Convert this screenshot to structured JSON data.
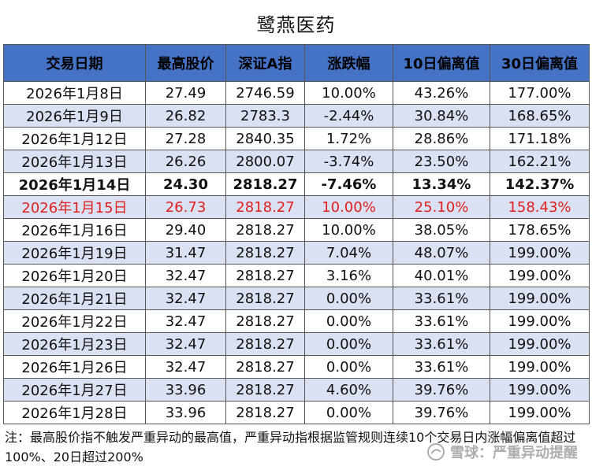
{
  "title": "鹭燕医药",
  "headers": [
    "交易日期",
    "最高股价",
    "深证A指",
    "涨跌幅",
    "10日偏离值",
    "30日偏离值"
  ],
  "rows": [
    {
      "date": "2026年1月8日",
      "high": "27.49",
      "index": "2746.59",
      "change": "10.00%",
      "dev10": "43.26%",
      "dev30": "177.00%"
    },
    {
      "date": "2026年1月9日",
      "high": "26.82",
      "index": "2783.3",
      "change": "-2.44%",
      "dev10": "30.84%",
      "dev30": "168.65%"
    },
    {
      "date": "2026年1月12日",
      "high": "27.28",
      "index": "2840.35",
      "change": "1.72%",
      "dev10": "28.86%",
      "dev30": "171.18%"
    },
    {
      "date": "2026年1月13日",
      "high": "26.26",
      "index": "2800.07",
      "change": "-3.74%",
      "dev10": "23.50%",
      "dev30": "162.21%"
    },
    {
      "date": "2026年1月14日",
      "high": "24.30",
      "index": "2818.27",
      "change": "-7.46%",
      "dev10": "13.34%",
      "dev30": "142.37%"
    },
    {
      "date": "2026年1月15日",
      "high": "26.73",
      "index": "2818.27",
      "change": "10.00%",
      "dev10": "25.10%",
      "dev30": "158.43%"
    },
    {
      "date": "2026年1月16日",
      "high": "29.40",
      "index": "2818.27",
      "change": "10.00%",
      "dev10": "38.05%",
      "dev30": "178.65%"
    },
    {
      "date": "2026年1月19日",
      "high": "31.47",
      "index": "2818.27",
      "change": "7.04%",
      "dev10": "48.07%",
      "dev30": "199.00%"
    },
    {
      "date": "2026年1月20日",
      "high": "32.47",
      "index": "2818.27",
      "change": "3.16%",
      "dev10": "40.01%",
      "dev30": "199.00%"
    },
    {
      "date": "2026年1月21日",
      "high": "32.47",
      "index": "2818.27",
      "change": "0.00%",
      "dev10": "33.61%",
      "dev30": "199.00%"
    },
    {
      "date": "2026年1月22日",
      "high": "32.47",
      "index": "2818.27",
      "change": "0.00%",
      "dev10": "33.61%",
      "dev30": "199.00%"
    },
    {
      "date": "2026年1月23日",
      "high": "32.47",
      "index": "2818.27",
      "change": "0.00%",
      "dev10": "33.61%",
      "dev30": "199.00%"
    },
    {
      "date": "2026年1月26日",
      "high": "32.47",
      "index": "2818.27",
      "change": "0.00%",
      "dev10": "33.61%",
      "dev30": "199.00%"
    },
    {
      "date": "2026年1月27日",
      "high": "33.96",
      "index": "2818.27",
      "change": "4.60%",
      "dev10": "39.76%",
      "dev30": "199.00%"
    },
    {
      "date": "2026年1月28日",
      "high": "33.96",
      "index": "2818.27",
      "change": "0.00%",
      "dev10": "39.76%",
      "dev30": "199.00%"
    }
  ],
  "highlight": {
    "bold_row": 4,
    "red_row": 5
  },
  "colors": {
    "header_bg": "#4472c4",
    "alt_row_bg": "#d9e1f2",
    "highlight_text": "#e02020"
  },
  "note": "注：最高股价指不触发严重异动的最高值，严重异动指根据监管规则连续10个交易日内涨幅偏离值超过100%、20日超过200%",
  "watermark": {
    "icon": "snowball-logo-icon",
    "text": "雪球：严重异动提醒"
  }
}
